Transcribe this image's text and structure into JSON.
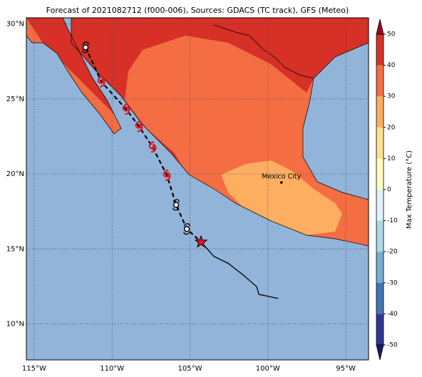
{
  "map": {
    "title": "Forecast of 2021082712 (f000-006), Sources: GDACS (TC track), GFS (Meteo)",
    "xlim": [
      -115.5,
      -93.54
    ],
    "ylim": [
      7.6,
      30.41
    ],
    "xticks": [
      {
        "value": -115,
        "label": "115°W"
      },
      {
        "value": -110,
        "label": "110°W"
      },
      {
        "value": -105,
        "label": "105°W"
      },
      {
        "value": -100,
        "label": "100°W"
      },
      {
        "value": -95,
        "label": "95°W"
      }
    ],
    "yticks": [
      {
        "value": 10,
        "label": "10°N"
      },
      {
        "value": 15,
        "label": "15°N"
      },
      {
        "value": 20,
        "label": "20°N"
      },
      {
        "value": 25,
        "label": "25°N"
      },
      {
        "value": 30,
        "label": "30°N"
      }
    ],
    "grid": true,
    "city": {
      "name": "Mexico City",
      "lon": -99.13,
      "lat": 19.43
    },
    "forecast_track": {
      "lon": [
        -111.7,
        -110.69,
        -109.09,
        -108.27,
        -107.4,
        -106.48,
        -105.89,
        -105.2
      ],
      "lat": [
        28.44,
        26.15,
        24.31,
        23.17,
        21.79,
        19.91,
        17.94,
        16.33
      ],
      "symbols": [
        "circle",
        "storm",
        "storm",
        "storm",
        "storm",
        "storm",
        "circle",
        "circle"
      ]
    },
    "current_position": {
      "lon": -104.29,
      "lat": 15.46
    },
    "past_track": {
      "lon": [
        -104.29,
        -103.46,
        -102.55,
        -101.63,
        -100.72,
        -100.58,
        -99.34
      ],
      "lat": [
        15.46,
        14.5,
        14.04,
        13.3,
        12.48,
        11.97,
        11.7
      ]
    },
    "colorbar": {
      "label": "Max Temperature (°C)",
      "ticks": [
        -50,
        -40,
        -30,
        -20,
        -10,
        0,
        10,
        20,
        30,
        40,
        50
      ],
      "colors": [
        "#313695",
        "#4575b4",
        "#74add1",
        "#abd9e9",
        "#e0f3f8",
        "#ffffbf",
        "#fee090",
        "#fdae61",
        "#f46d43",
        "#d73027"
      ],
      "under_color": "#1a1a6e",
      "over_color": "#a50026"
    }
  }
}
